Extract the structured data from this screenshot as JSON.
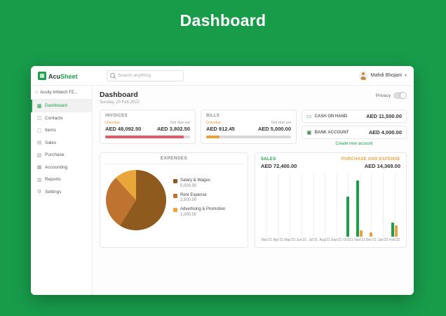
{
  "page_title": "Dashboard",
  "app": {
    "brand_acu": "Acu",
    "brand_sheet": "Sheet",
    "logo_glyph": "▦",
    "search": {
      "placeholder": "Search anything"
    },
    "user": {
      "name": "Mahdi Bhojani",
      "chevron": "▾"
    },
    "org": {
      "name": "Acuity Infotech FZ...",
      "icon": "⌂"
    },
    "sidebar": [
      {
        "label": "Dashboard",
        "icon": "▦",
        "active": true
      },
      {
        "label": "Contacts",
        "icon": "◫"
      },
      {
        "label": "Items",
        "icon": "▢"
      },
      {
        "label": "Sales",
        "icon": "▤"
      },
      {
        "label": "Purchase",
        "icon": "▧"
      },
      {
        "label": "Accounting",
        "icon": "▩"
      },
      {
        "label": "Reports",
        "icon": "▥"
      },
      {
        "label": "Settings",
        "icon": "⚙"
      }
    ],
    "header": {
      "title": "Dashboard",
      "date": "Sunday, 20 Feb 2022",
      "privacy_label": "Privacy"
    },
    "invoices": {
      "title": "INVOICES",
      "overdue_label": "Overdue",
      "overdue_value": "AED 48,092.50",
      "notdue_label": "Not due yet",
      "notdue_value": "AED 3,802.50",
      "overdue_pct": 92.7,
      "bar_color": "#e25b68"
    },
    "bills": {
      "title": "BILLS",
      "overdue_label": "Overdue",
      "overdue_value": "AED 912.45",
      "notdue_label": "Not due yet",
      "notdue_value": "AED 5,000.00",
      "overdue_pct": 15.4,
      "bar_color": "#eaa23e"
    },
    "accounts": {
      "cash": {
        "label": "CASH ON HAND",
        "value": "AED 11,500.00",
        "icon": "▭"
      },
      "bank": {
        "label": "BANK ACCOUNT",
        "value": "AED 4,000.00",
        "icon": "▣"
      },
      "create_link": "Create new account"
    },
    "expenses_title": "EXPENSES",
    "sales_summary": {
      "sales_label": "SALES",
      "sales_value": "AED 72,400.00",
      "purchase_label": "PURCHASE AND EXPENSE",
      "purchase_value": "AED 14,369.00"
    }
  },
  "colors": {
    "background_green": "#189c4a",
    "brand_green": "#1e9e4a",
    "overdue_orange": "#e79b38",
    "invoice_red": "#e25b68",
    "purchase_orange": "#eaa23e"
  },
  "chart_data": [
    {
      "type": "pie",
      "title": "EXPENSES",
      "labels": [
        "Salary & Wages",
        "Rent Expense",
        "Advertising & Promotion"
      ],
      "values": [
        5000,
        2500,
        1000
      ],
      "colors": [
        "#8f5a1d",
        "#bf7330",
        "#e9a63b"
      ],
      "legend_position": "right"
    },
    {
      "type": "bar",
      "title": "Sales vs Purchase and Expense by month",
      "categories": [
        "Mar'21",
        "Apr'21",
        "May'21",
        "Jun'21",
        "Jul'21",
        "Aug'21",
        "Sep'21",
        "Oct'21",
        "Nov'21",
        "Dec'21",
        "Jan'22",
        "Feb'22"
      ],
      "series": [
        {
          "name": "Sales",
          "total_label": "AED 72,400.00",
          "color": "#1e9e4a",
          "values": [
            0,
            0,
            0,
            0,
            0,
            0,
            0,
            26000,
            37000,
            0,
            0,
            9400
          ]
        },
        {
          "name": "Purchase and Expense",
          "total_label": "AED 14,369.00",
          "color": "#eaa23e",
          "values": [
            0,
            0,
            0,
            0,
            0,
            0,
            0,
            0,
            4200,
            2600,
            0,
            7569
          ]
        }
      ],
      "ylim": [
        0,
        40000
      ],
      "grid": "vertical-guides"
    }
  ]
}
